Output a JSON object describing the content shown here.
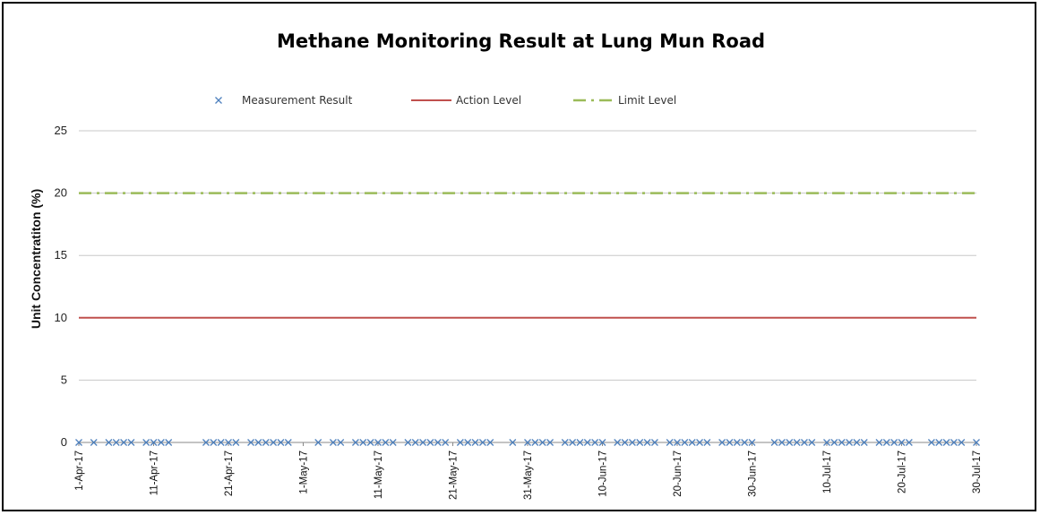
{
  "chart_data": {
    "type": "line",
    "title": "Methane Monitoring Result at Lung Mun Road",
    "xlabel": "",
    "ylabel": "Unit Concentratiton (%)",
    "ylim": [
      0,
      25
    ],
    "yticks": [
      0,
      5,
      10,
      15,
      20,
      25
    ],
    "xlim": [
      "2017-04-01",
      "2017-07-30"
    ],
    "x_tick_labels": [
      "1-Apr-17",
      "11-Apr-17",
      "21-Apr-17",
      "1-May-17",
      "11-May-17",
      "21-May-17",
      "31-May-17",
      "10-Jun-17",
      "20-Jun-17",
      "30-Jun-17",
      "10-Jul-17",
      "20-Jul-17",
      "30-Jul-17"
    ],
    "grid": true,
    "legend_position": "top",
    "series": [
      {
        "name": "Measurement Result",
        "style": "scatter-x",
        "color": "#4f81bd",
        "x": [
          "2017-04-01",
          "2017-04-03",
          "2017-04-05",
          "2017-04-06",
          "2017-04-07",
          "2017-04-08",
          "2017-04-10",
          "2017-04-11",
          "2017-04-12",
          "2017-04-13",
          "2017-04-18",
          "2017-04-19",
          "2017-04-20",
          "2017-04-21",
          "2017-04-22",
          "2017-04-24",
          "2017-04-25",
          "2017-04-26",
          "2017-04-27",
          "2017-04-28",
          "2017-04-29",
          "2017-05-03",
          "2017-05-05",
          "2017-05-06",
          "2017-05-08",
          "2017-05-09",
          "2017-05-10",
          "2017-05-11",
          "2017-05-12",
          "2017-05-13",
          "2017-05-15",
          "2017-05-16",
          "2017-05-17",
          "2017-05-18",
          "2017-05-19",
          "2017-05-20",
          "2017-05-22",
          "2017-05-23",
          "2017-05-24",
          "2017-05-25",
          "2017-05-26",
          "2017-05-29",
          "2017-05-31",
          "2017-06-01",
          "2017-06-02",
          "2017-06-03",
          "2017-06-05",
          "2017-06-06",
          "2017-06-07",
          "2017-06-08",
          "2017-06-09",
          "2017-06-10",
          "2017-06-12",
          "2017-06-13",
          "2017-06-14",
          "2017-06-15",
          "2017-06-16",
          "2017-06-17",
          "2017-06-19",
          "2017-06-20",
          "2017-06-21",
          "2017-06-22",
          "2017-06-23",
          "2017-06-24",
          "2017-06-26",
          "2017-06-27",
          "2017-06-28",
          "2017-06-29",
          "2017-06-30",
          "2017-07-03",
          "2017-07-04",
          "2017-07-05",
          "2017-07-06",
          "2017-07-07",
          "2017-07-08",
          "2017-07-10",
          "2017-07-11",
          "2017-07-12",
          "2017-07-13",
          "2017-07-14",
          "2017-07-15",
          "2017-07-17",
          "2017-07-18",
          "2017-07-19",
          "2017-07-20",
          "2017-07-21",
          "2017-07-24",
          "2017-07-25",
          "2017-07-26",
          "2017-07-27",
          "2017-07-28",
          "2017-07-30"
        ],
        "values": [
          0,
          0,
          0,
          0,
          0,
          0,
          0,
          0,
          0,
          0,
          0,
          0,
          0,
          0,
          0,
          0,
          0,
          0,
          0,
          0,
          0,
          0,
          0,
          0,
          0,
          0,
          0,
          0,
          0,
          0,
          0,
          0,
          0,
          0,
          0,
          0,
          0,
          0,
          0,
          0,
          0,
          0,
          0,
          0,
          0,
          0,
          0,
          0,
          0,
          0,
          0,
          0,
          0,
          0,
          0,
          0,
          0,
          0,
          0,
          0,
          0,
          0,
          0,
          0,
          0,
          0,
          0,
          0,
          0,
          0,
          0,
          0,
          0,
          0,
          0,
          0,
          0,
          0,
          0,
          0,
          0,
          0,
          0,
          0,
          0,
          0,
          0,
          0,
          0,
          0,
          0,
          0
        ]
      },
      {
        "name": "Action Level",
        "style": "solid-line",
        "color": "#c0504d",
        "x": [
          "2017-04-01",
          "2017-07-30"
        ],
        "values": [
          10,
          10
        ]
      },
      {
        "name": "Limit Level",
        "style": "dash-dot-line",
        "color": "#9bbb59",
        "x": [
          "2017-04-01",
          "2017-07-30"
        ],
        "values": [
          20,
          20
        ]
      }
    ]
  }
}
